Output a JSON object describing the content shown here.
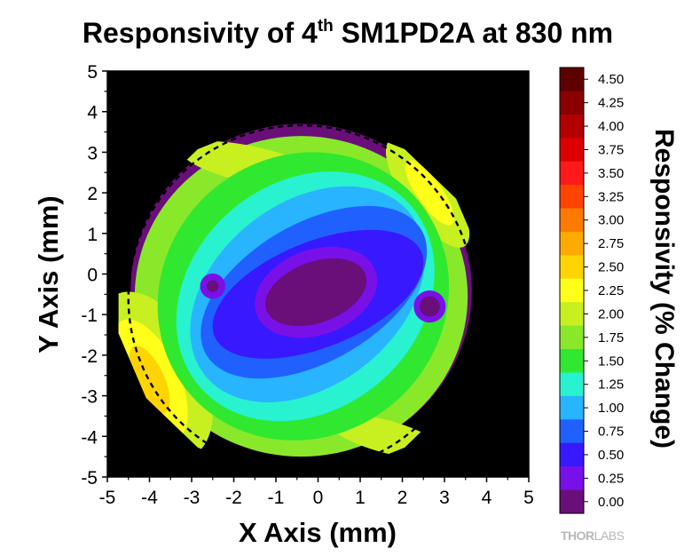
{
  "chart_data": {
    "type": "heatmap",
    "title": {
      "prefix": "Responsivity of 4",
      "sup": "th",
      "suffix": " SM1PD2A at 830 nm"
    },
    "xlabel": "X Axis (mm)",
    "ylabel": "Y Axis (mm)",
    "xlim": [
      -5,
      5
    ],
    "ylim": [
      -5,
      5
    ],
    "xticks": [
      "-5",
      "-4",
      "-3",
      "-2",
      "-1",
      "0",
      "1",
      "2",
      "3",
      "4",
      "5"
    ],
    "yticks": [
      "5",
      "4",
      "3",
      "2",
      "1",
      "0",
      "-1",
      "-2",
      "-3",
      "-4",
      "-5"
    ],
    "background_color": "#000000",
    "detector_outline": {
      "style": "dashed",
      "center": [
        -0.4,
        -0.6
      ],
      "radius": 4.1
    },
    "colorbar": {
      "title": "Responsivity (% Change)",
      "levels": [
        "4.50",
        "4.25",
        "4.00",
        "3.75",
        "3.50",
        "3.25",
        "3.00",
        "2.75",
        "2.50",
        "2.25",
        "2.00",
        "1.75",
        "1.50",
        "1.25",
        "1.00",
        "0.75",
        "0.50",
        "0.25",
        "0.00"
      ],
      "colors": [
        "#5e0000",
        "#8a0000",
        "#b20000",
        "#dc0000",
        "#ff1a1a",
        "#ff4400",
        "#ff7a00",
        "#ffaa00",
        "#ffd400",
        "#ffff1a",
        "#c8f020",
        "#8ae82a",
        "#30e830",
        "#28f2d0",
        "#28b4ff",
        "#2060ff",
        "#3818ff",
        "#7a10e8",
        "#6a0e7a"
      ]
    },
    "contour_bands": [
      {
        "level": "0.00",
        "color": "#6a0e7a",
        "cx": -0.4,
        "cy": -0.4,
        "rx": 4.05,
        "ry": 4.1,
        "rot": 0
      },
      {
        "level": "1.75",
        "color": "#8ae82a",
        "cx": -0.4,
        "cy": -0.55,
        "rx": 3.95,
        "ry": 3.95,
        "rot": 0
      },
      {
        "level": "1.50",
        "color": "#30e830",
        "cx": -0.35,
        "cy": -0.55,
        "rx": 3.55,
        "ry": 3.45,
        "rot": -40
      },
      {
        "level": "1.25",
        "color": "#28f2d0",
        "cx": -0.3,
        "cy": -0.55,
        "rx": 3.3,
        "ry": 2.8,
        "rot": -40
      },
      {
        "level": "1.00",
        "color": "#28b4ff",
        "cx": -0.25,
        "cy": -0.5,
        "rx": 3.1,
        "ry": 2.25,
        "rot": -38
      },
      {
        "level": "0.75",
        "color": "#2060ff",
        "cx": -0.1,
        "cy": -0.45,
        "rx": 2.95,
        "ry": 1.7,
        "rot": -30
      },
      {
        "level": "0.50",
        "color": "#3818ff",
        "cx": 0.0,
        "cy": -0.5,
        "rx": 2.65,
        "ry": 1.3,
        "rot": -22
      },
      {
        "level": "0.25",
        "color": "#7a10e8",
        "cx": -0.05,
        "cy": -0.45,
        "rx": 1.5,
        "ry": 1.05,
        "rot": -20
      },
      {
        "level": "0.00",
        "color": "#6a0e7a",
        "cx": -0.05,
        "cy": -0.45,
        "rx": 1.25,
        "ry": 0.75,
        "rot": -20
      }
    ],
    "edge_patches": [
      {
        "level": "2.00",
        "color": "#c8f020",
        "cx": -3.9,
        "cy": -2.5,
        "rx": 1.2,
        "ry": 2.2,
        "rot": -25
      },
      {
        "level": "2.25",
        "color": "#ffff1a",
        "cx": -4.0,
        "cy": -2.6,
        "rx": 0.7,
        "ry": 1.6,
        "rot": -25
      },
      {
        "level": "2.50",
        "color": "#ffd400",
        "cx": -4.0,
        "cy": -2.6,
        "rx": 0.35,
        "ry": 0.9,
        "rot": -25
      },
      {
        "level": "2.00",
        "color": "#c8f020",
        "cx": 2.6,
        "cy": 2.0,
        "rx": 0.55,
        "ry": 1.6,
        "rot": -35
      },
      {
        "level": "2.25",
        "color": "#ffff1a",
        "cx": 2.65,
        "cy": 2.0,
        "rx": 0.3,
        "ry": 0.95,
        "rot": -35
      },
      {
        "level": "2.00",
        "color": "#c8f020",
        "cx": -1.6,
        "cy": 2.7,
        "rx": 1.7,
        "ry": 0.45,
        "rot": 12
      },
      {
        "level": "2.00",
        "color": "#c8f020",
        "cx": 1.6,
        "cy": -4.0,
        "rx": 1.4,
        "ry": 0.4,
        "rot": 15
      }
    ],
    "spots": [
      {
        "level": "0.25",
        "color": "#7a10e8",
        "cx": -2.5,
        "cy": -0.3,
        "r": 0.3
      },
      {
        "level": "0.00",
        "color": "#6a0e7a",
        "cx": -2.5,
        "cy": -0.3,
        "r": 0.14
      },
      {
        "level": "0.25",
        "color": "#7a10e8",
        "cx": 2.65,
        "cy": -0.8,
        "r": 0.38
      },
      {
        "level": "0.00",
        "color": "#6a0e7a",
        "cx": 2.65,
        "cy": -0.8,
        "r": 0.24
      }
    ]
  },
  "logo": {
    "text_bold": "THOR",
    "text_light": "LABS"
  }
}
